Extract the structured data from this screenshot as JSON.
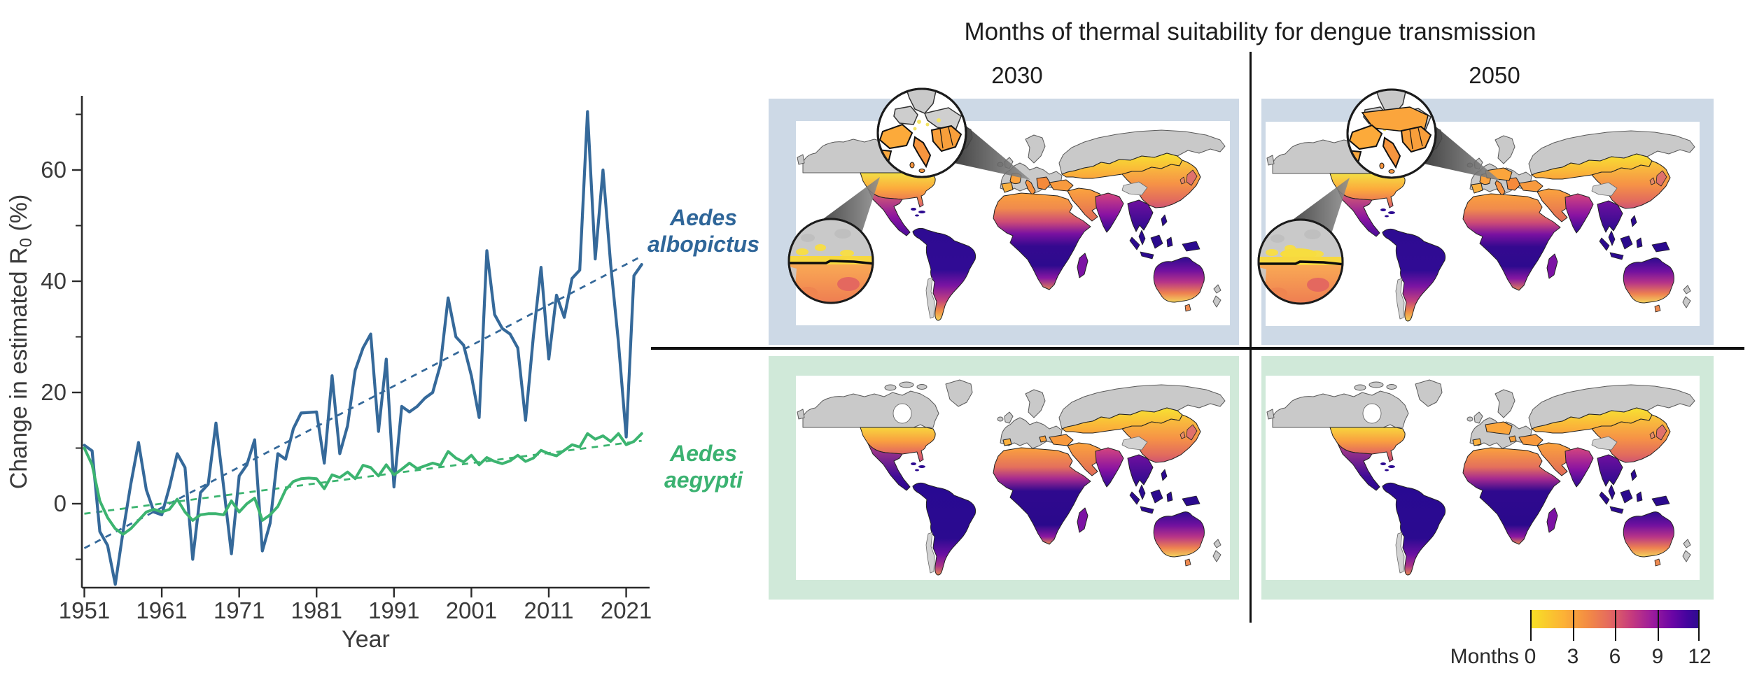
{
  "line_chart": {
    "ylabel_main": "Change in estimated R",
    "ylabel_sub": "0",
    "ylabel_unit": " (%)",
    "xlabel": "Year",
    "x_ticks": [
      1951,
      1961,
      1971,
      1981,
      1991,
      2001,
      2011,
      2021
    ],
    "y_ticks": [
      0,
      20,
      40,
      60
    ],
    "y_minor_ticks": [
      -10,
      10,
      30,
      50,
      70
    ],
    "axis_color": "#2b2b2b",
    "text_color": "#3a3a3a"
  },
  "chart_data": {
    "type": "line",
    "title": "",
    "xlabel": "Year",
    "ylabel": "Change in estimated R0 (%)",
    "xlim": [
      1951,
      2024
    ],
    "ylim": [
      -16,
      73
    ],
    "grid": false,
    "x": [
      1951,
      1952,
      1953,
      1954,
      1955,
      1956,
      1957,
      1958,
      1959,
      1960,
      1961,
      1962,
      1963,
      1964,
      1965,
      1966,
      1967,
      1968,
      1969,
      1970,
      1971,
      1972,
      1973,
      1974,
      1975,
      1976,
      1977,
      1978,
      1979,
      1980,
      1981,
      1982,
      1983,
      1984,
      1985,
      1986,
      1987,
      1988,
      1989,
      1990,
      1991,
      1992,
      1993,
      1994,
      1995,
      1996,
      1997,
      1998,
      1999,
      2000,
      2001,
      2002,
      2003,
      2004,
      2005,
      2006,
      2007,
      2008,
      2009,
      2010,
      2011,
      2012,
      2013,
      2014,
      2015,
      2016,
      2017,
      2018,
      2019,
      2020,
      2021,
      2022,
      2023
    ],
    "series": [
      {
        "name": "Aedes albopictus",
        "color": "#35699a",
        "values": [
          10.5,
          9.5,
          -5,
          -7.5,
          -14.5,
          -5,
          3.5,
          11,
          2.5,
          -1.5,
          -2,
          3,
          9,
          6.5,
          -10,
          2,
          3.5,
          14.5,
          3,
          -9,
          5,
          7,
          11.5,
          -8.5,
          -3.5,
          9,
          8,
          13.5,
          16.3,
          16.4,
          16.5,
          7.3,
          23,
          9,
          14,
          24,
          28,
          30.5,
          13,
          26,
          3,
          17.5,
          16.5,
          17.5,
          19,
          20,
          25,
          37,
          30,
          28.5,
          23,
          15.5,
          45.5,
          34,
          31.5,
          30.5,
          28,
          15,
          30,
          42.5,
          26,
          37.5,
          33.5,
          40.5,
          42,
          70.5,
          44,
          60,
          43,
          29,
          12,
          41,
          43
        ],
        "trend_endpoints": [
          -8,
          44.5
        ]
      },
      {
        "name": "Aedes aegypti",
        "color": "#3cb470",
        "values": [
          10,
          7,
          0.5,
          -2.5,
          -4.5,
          -5.5,
          -4.5,
          -3,
          -1.5,
          -1,
          -1.5,
          -1,
          0.8,
          -1.5,
          -3,
          -2,
          -1.8,
          -1.8,
          -2,
          0.5,
          -1.5,
          0,
          1,
          -3,
          -2,
          -0.5,
          2.5,
          4,
          4.5,
          4.6,
          4.5,
          2.7,
          5.2,
          4.7,
          5.7,
          4.5,
          6.9,
          6.5,
          5,
          7,
          5.2,
          6.2,
          7.3,
          6.3,
          6.8,
          7.3,
          6.9,
          9.4,
          8.2,
          7.5,
          8.7,
          7,
          8.3,
          7.6,
          7.2,
          7.7,
          8.7,
          7.6,
          8.2,
          9.6,
          9,
          8.6,
          9.6,
          10.6,
          10.2,
          12.6,
          11.6,
          12.2,
          11.2,
          12.6,
          10.6,
          11.2,
          12.6
        ],
        "trend_endpoints": [
          -1.8,
          11.3
        ]
      }
    ],
    "legend_position": "left-row-labels"
  },
  "maps": {
    "title": "Months of thermal suitability for dengue transmission",
    "columns": [
      "2030",
      "2050"
    ],
    "rows": [
      {
        "species_line1": "Aedes",
        "species_line2": "albopictus",
        "color": "#2f6699",
        "panel_color": "#cdd9e6"
      },
      {
        "species_line1": "Aedes",
        "species_line2": "aegypti",
        "color": "#3bb271",
        "panel_color": "#d0e9d9"
      }
    ],
    "colorbar": {
      "label": "Months",
      "ticks": [
        0,
        3,
        6,
        9,
        12
      ],
      "palette": [
        "#f7e225",
        "#fcb136",
        "#f38b44",
        "#e46960",
        "#c53a7e",
        "#9c1c9c",
        "#6a05a5",
        "#43049e",
        "#2d0d8e"
      ]
    },
    "nonsuitable_land_color": "#c9c9c9",
    "ocean_color": "#ffffff"
  }
}
